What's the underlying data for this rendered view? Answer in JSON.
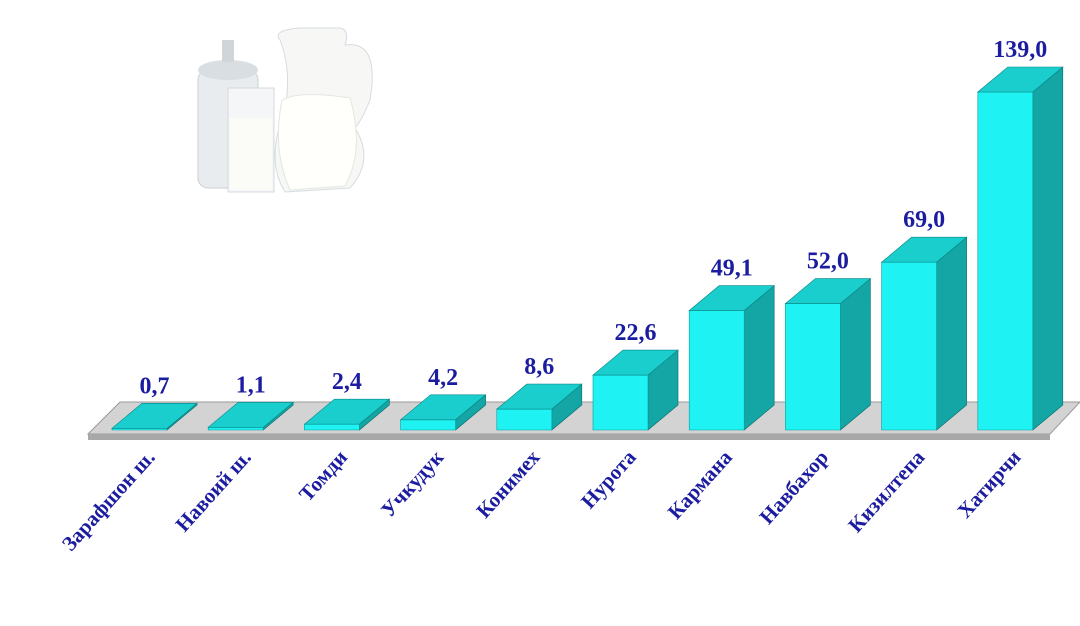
{
  "chart_data": {
    "type": "bar3d",
    "categories": [
      "Зарафшон ш.",
      "Навоий ш.",
      "Томди",
      "Учкудук",
      "Конимех",
      "Нурота",
      "Кармана",
      "Навбахор",
      "Кизилтепа",
      "Хатирчи"
    ],
    "values": [
      0.7,
      1.1,
      2.4,
      4.2,
      8.6,
      22.6,
      49.1,
      52.0,
      69.0,
      139.0
    ],
    "value_labels": [
      "0,7",
      "1,1",
      "2,4",
      "4,2",
      "8,6",
      "22,6",
      "49,1",
      "52,0",
      "69,0",
      "139,0"
    ],
    "color": "#1ef2f2"
  }
}
